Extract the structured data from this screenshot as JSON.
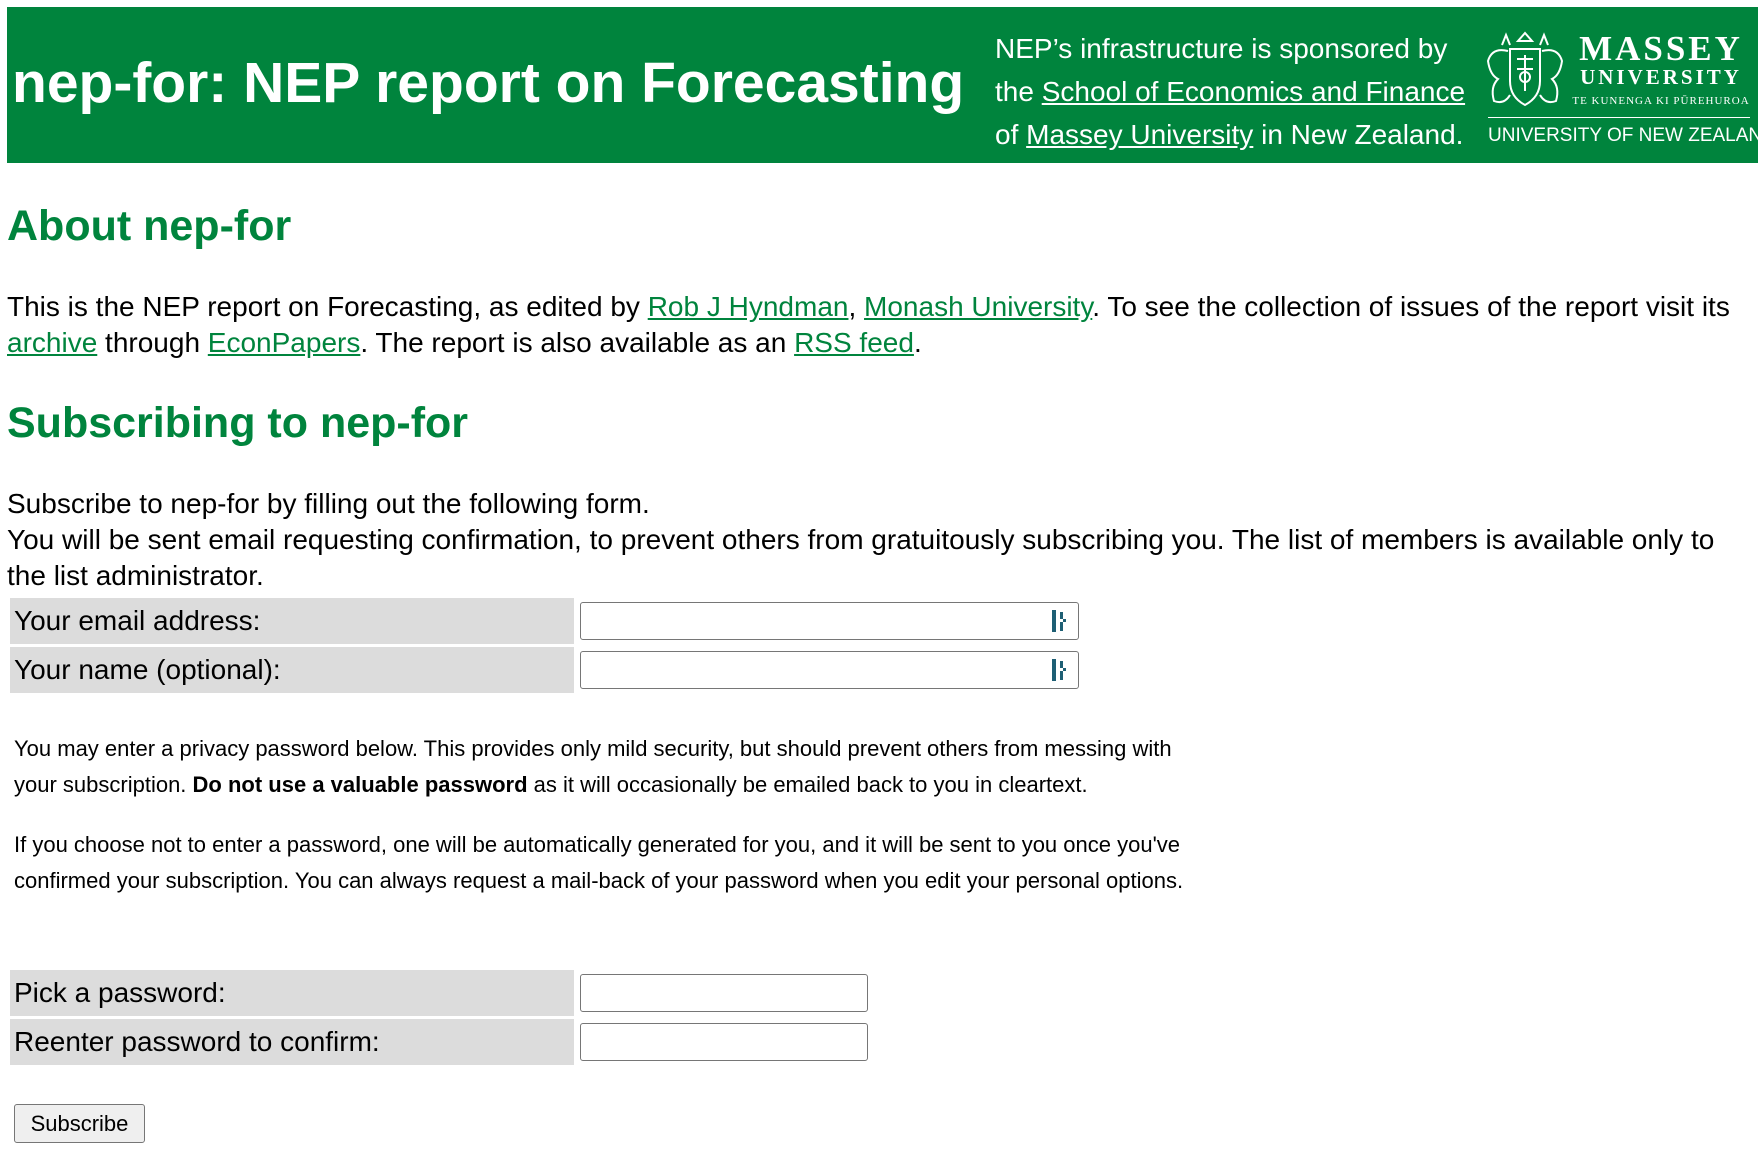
{
  "header": {
    "title": "nep-for: NEP report on Forecasting",
    "sponsor_line1": "NEP’s infrastructure is sponsored by",
    "sponsor_the": "the",
    "sponsor_school_link": "School of Economics and Finance",
    "sponsor_of": "of",
    "sponsor_massey_link": "Massey University",
    "sponsor_rest": "in New Zealand.",
    "logo": {
      "name": "MASSEY",
      "university": "UNIVERSITY",
      "maori": "TE KUNENGA KI PŪREHUROA",
      "tagline": "UNIVERSITY OF NEW ZEALAND",
      "crest": "crest-icon"
    }
  },
  "about": {
    "heading": "About nep-for",
    "text1": "This is the NEP report on Forecasting, as edited by",
    "editor_link": "Rob J Hyndman",
    "comma": ",",
    "institution_link": "Monash University",
    "text2": ". To see the collection of issues of the report visit its",
    "archive_link": "archive",
    "text3": "through",
    "econpapers_link": "EconPapers",
    "text4": ". The report is also available as an",
    "rss_link": "RSS feed",
    "text5": "."
  },
  "subscribe": {
    "heading": "Subscribing to nep-for",
    "intro1": "Subscribe to nep-for by filling out the following form.",
    "intro2": "You will be sent email requesting confirmation, to prevent others from gratuitously subscribing you. The list of members is available only to the list administrator.",
    "email_label": "Your email address:",
    "email_value": "",
    "name_label": "Your name (optional):",
    "name_value": "",
    "privacy_text1": "You may enter a privacy password below. This provides only mild security, but should prevent others from messing with your subscription.",
    "privacy_bold": "Do not use a valuable password",
    "privacy_text2": "as it will occasionally be emailed back to you in cleartext.",
    "auto_text": "If you choose not to enter a password, one will be automatically generated for you, and it will be sent to you once you've confirmed your subscription. You can always request a mail-back of your password when you edit your personal options.",
    "password_label": "Pick a password:",
    "password_value": "",
    "confirm_label": "Reenter password to confirm:",
    "confirm_value": "",
    "button_label": "Subscribe",
    "field_icon": "password-manager-icon"
  },
  "colors": {
    "brand_green": "#00843d",
    "label_bg": "#dcdcdc",
    "field_icon": "#1e5f74"
  }
}
